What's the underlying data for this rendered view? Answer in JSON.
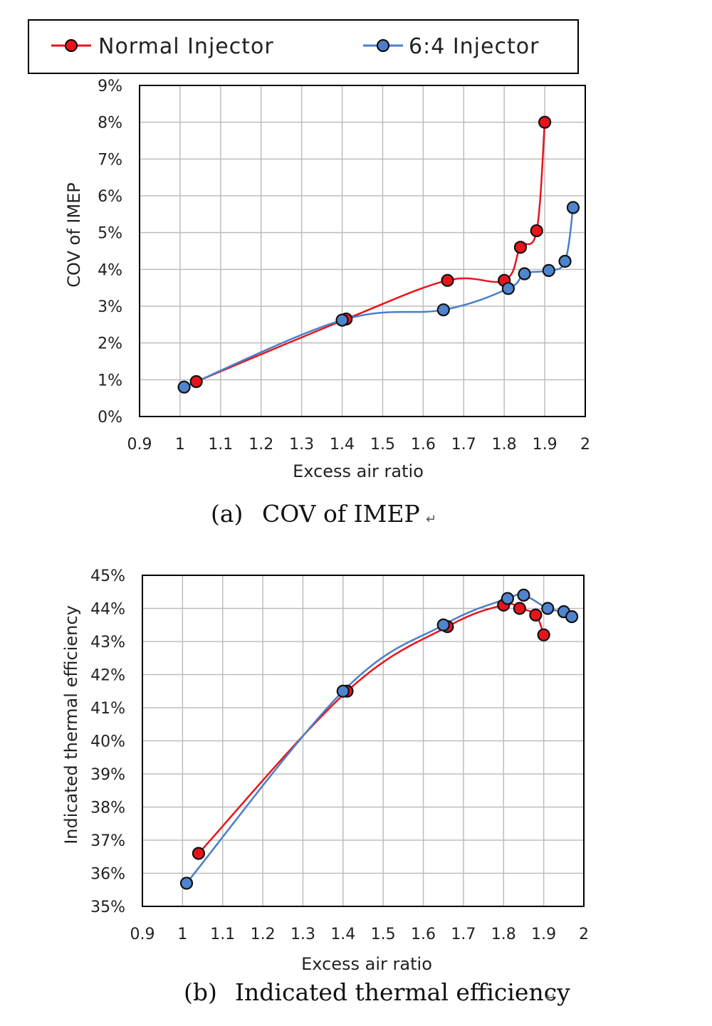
{
  "legend": {
    "items": [
      {
        "label": "Normal Injector",
        "color": "#e8141c"
      },
      {
        "label": "6:4 Injector",
        "color": "#4a7fc8"
      }
    ]
  },
  "colors": {
    "normal_line": "#e8141c",
    "normal_marker": "#e8141c",
    "six_four_line": "#4a7fc8",
    "six_four_marker": "#4f85cf",
    "grid": "#bdbdbd",
    "frame": "#000000"
  },
  "chart_data": [
    {
      "type": "line",
      "caption_label": "(a)",
      "caption_text": "COV of IMEP",
      "caption_mark": "↵",
      "xlabel": "Excess air ratio",
      "ylabel": "COV of IMEP",
      "xlim": [
        0.9,
        2.0
      ],
      "ylim": [
        0,
        9
      ],
      "y_unit": "%",
      "x_ticks": [
        "0.9",
        "1",
        "1.1",
        "1.2",
        "1.3",
        "1.4",
        "1.5",
        "1.6",
        "1.7",
        "1.8",
        "1.9",
        "2"
      ],
      "y_ticks": [
        "0%",
        "1%",
        "2%",
        "3%",
        "4%",
        "5%",
        "6%",
        "7%",
        "8%",
        "9%"
      ],
      "grid": true,
      "series": [
        {
          "name": "Normal Injector",
          "x": [
            1.04,
            1.41,
            1.66,
            1.8,
            1.84,
            1.88,
            1.9
          ],
          "y": [
            0.95,
            2.65,
            3.7,
            3.7,
            4.6,
            5.05,
            8.0
          ]
        },
        {
          "name": "6:4 Injector",
          "x": [
            1.01,
            1.4,
            1.65,
            1.81,
            1.85,
            1.91,
            1.95,
            1.97
          ],
          "y": [
            0.8,
            2.62,
            2.9,
            3.48,
            3.88,
            3.97,
            4.22,
            5.68
          ]
        }
      ]
    },
    {
      "type": "line",
      "caption_label": "(b)",
      "caption_text": "Indicated thermal efficiency",
      "caption_mark": "↵",
      "xlabel": "Excess air ratio",
      "ylabel": "Indicated thermal efficiency",
      "xlim": [
        0.9,
        2.0
      ],
      "ylim": [
        35,
        45
      ],
      "y_unit": "%",
      "x_ticks": [
        "0.9",
        "1",
        "1.1",
        "1.2",
        "1.3",
        "1.4",
        "1.5",
        "1.6",
        "1.7",
        "1.8",
        "1.9",
        "2"
      ],
      "y_ticks": [
        "35%",
        "36%",
        "37%",
        "38%",
        "39%",
        "40%",
        "41%",
        "42%",
        "43%",
        "44%",
        "45%"
      ],
      "grid": true,
      "series": [
        {
          "name": "Normal Injector",
          "x": [
            1.04,
            1.41,
            1.66,
            1.8,
            1.84,
            1.88,
            1.9
          ],
          "y": [
            36.6,
            41.5,
            43.45,
            44.1,
            44.0,
            43.8,
            43.2
          ]
        },
        {
          "name": "6:4 Injector",
          "x": [
            1.01,
            1.4,
            1.65,
            1.81,
            1.85,
            1.91,
            1.95,
            1.97
          ],
          "y": [
            35.7,
            41.5,
            43.5,
            44.3,
            44.4,
            44.0,
            43.9,
            43.75
          ]
        }
      ]
    }
  ]
}
